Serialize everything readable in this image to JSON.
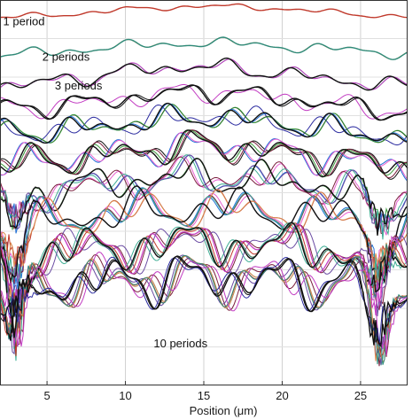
{
  "chart_data": {
    "type": "line",
    "title": "",
    "xlabel": "Position (μm)",
    "ylabel": "",
    "xlim": [
      2,
      28
    ],
    "xticks": [
      5,
      10,
      15,
      20,
      25
    ],
    "xtick_labels": [
      "5",
      "10",
      "15",
      "20",
      "25"
    ],
    "grid": true,
    "legend": "none",
    "annotations": [
      {
        "text": "1 period",
        "x": 2.2,
        "row": 1
      },
      {
        "text": "2 periods",
        "x": 4.7,
        "row": 2
      },
      {
        "text": "3 periods",
        "x": 5.5,
        "row": 3
      },
      {
        "text": "10 periods",
        "x": 11.8,
        "row": 10
      }
    ],
    "series_colors": [
      "#c0392b",
      "#d98a4e",
      "#2e8b7a",
      "#c23cc2",
      "#2c2ca0",
      "#111111",
      "#3a9a3a",
      "#1f6fd6",
      "#e85fd0",
      "#7a1f3d",
      "#3fae94",
      "#6b4ca3"
    ],
    "groups": [
      {
        "label": "1 period",
        "traces": 1,
        "x": [
          2,
          6,
          10,
          15,
          20,
          25,
          28
        ],
        "y": [
          0.955,
          0.962,
          0.975,
          0.985,
          0.978,
          0.962,
          0.958
        ]
      },
      {
        "label": "2 periods",
        "traces": 2,
        "x": [
          2,
          6,
          10,
          15,
          20,
          25,
          28
        ],
        "y": [
          0.855,
          0.868,
          0.88,
          0.89,
          0.88,
          0.868,
          0.86
        ]
      },
      {
        "label": "3 periods",
        "traces": 3,
        "x": [
          2,
          6,
          10,
          15,
          20,
          25,
          28
        ],
        "y": [
          0.78,
          0.79,
          0.815,
          0.83,
          0.81,
          0.785,
          0.775
        ]
      },
      {
        "label": "",
        "traces": 4,
        "x": [
          2,
          6,
          10,
          15,
          20,
          25,
          28
        ],
        "y": [
          0.72,
          0.725,
          0.745,
          0.765,
          0.745,
          0.72,
          0.71
        ]
      },
      {
        "label": "",
        "traces": 5,
        "x": [
          2,
          6,
          10,
          15,
          20,
          25,
          28
        ],
        "y": [
          0.66,
          0.66,
          0.68,
          0.7,
          0.68,
          0.655,
          0.645
        ]
      },
      {
        "label": "",
        "traces": 6,
        "x": [
          2,
          6,
          10,
          15,
          20,
          25,
          28
        ],
        "y": [
          0.58,
          0.585,
          0.605,
          0.625,
          0.605,
          0.58,
          0.57
        ]
      },
      {
        "label": "",
        "traces": 7,
        "x": [
          2,
          6,
          10,
          15,
          20,
          25,
          28
        ],
        "y": [
          0.5,
          0.51,
          0.53,
          0.545,
          0.53,
          0.505,
          0.495
        ]
      },
      {
        "label": "",
        "traces": 8,
        "x": [
          2,
          6,
          10,
          15,
          20,
          25,
          28
        ],
        "y": [
          0.42,
          0.43,
          0.45,
          0.46,
          0.45,
          0.43,
          0.42
        ]
      },
      {
        "label": "",
        "traces": 9,
        "x": [
          2,
          6,
          10,
          15,
          20,
          25,
          28
        ],
        "y": [
          0.335,
          0.345,
          0.36,
          0.37,
          0.36,
          0.345,
          0.335
        ]
      },
      {
        "label": "10 periods",
        "traces": 10,
        "x": [
          2,
          6,
          10,
          15,
          20,
          25,
          28
        ],
        "y": [
          0.255,
          0.265,
          0.275,
          0.28,
          0.275,
          0.265,
          0.255
        ]
      }
    ]
  }
}
